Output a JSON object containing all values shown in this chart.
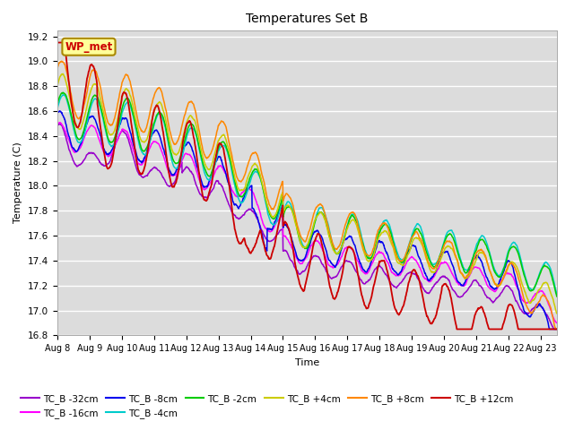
{
  "title": "Temperatures Set B",
  "xlabel": "Time",
  "ylabel": "Temperature (C)",
  "ylim": [
    16.8,
    19.25
  ],
  "xlim": [
    0,
    15.5
  ],
  "background_color": "#dcdcdc",
  "grid_color": "#ffffff",
  "series": {
    "TC_B -32cm": {
      "color": "#9900cc",
      "lw": 1.1
    },
    "TC_B -16cm": {
      "color": "#ff00ff",
      "lw": 1.1
    },
    "TC_B -8cm": {
      "color": "#0000ee",
      "lw": 1.1
    },
    "TC_B -4cm": {
      "color": "#00cccc",
      "lw": 1.1
    },
    "TC_B -2cm": {
      "color": "#00cc00",
      "lw": 1.1
    },
    "TC_B +4cm": {
      "color": "#cccc00",
      "lw": 1.1
    },
    "TC_B +8cm": {
      "color": "#ff8800",
      "lw": 1.1
    },
    "TC_B +12cm": {
      "color": "#cc0000",
      "lw": 1.3
    }
  },
  "xtick_labels": [
    "Aug 8",
    "Aug 9",
    "Aug 10",
    "Aug 11",
    "Aug 12",
    "Aug 13",
    "Aug 14",
    "Aug 15",
    "Aug 16",
    "Aug 17",
    "Aug 18",
    "Aug 19",
    "Aug 20",
    "Aug 21",
    "Aug 22",
    "Aug 23"
  ],
  "xtick_positions": [
    0,
    1,
    2,
    3,
    4,
    5,
    6,
    7,
    8,
    9,
    10,
    11,
    12,
    13,
    14,
    15
  ],
  "ytick_labels": [
    "16.8",
    "17.0",
    "17.2",
    "17.4",
    "17.6",
    "17.8",
    "18.0",
    "18.2",
    "18.4",
    "18.6",
    "18.8",
    "19.0",
    "19.2"
  ],
  "ytick_values": [
    16.8,
    17.0,
    17.2,
    17.4,
    17.6,
    17.8,
    18.0,
    18.2,
    18.4,
    18.6,
    18.8,
    19.0,
    19.2
  ],
  "wp_met_label": "WP_met",
  "wp_met_color": "#cc0000",
  "wp_met_bg": "#ffff99",
  "wp_met_border": "#aa8800",
  "legend_ncol1": 6,
  "legend_ncol2": 2
}
